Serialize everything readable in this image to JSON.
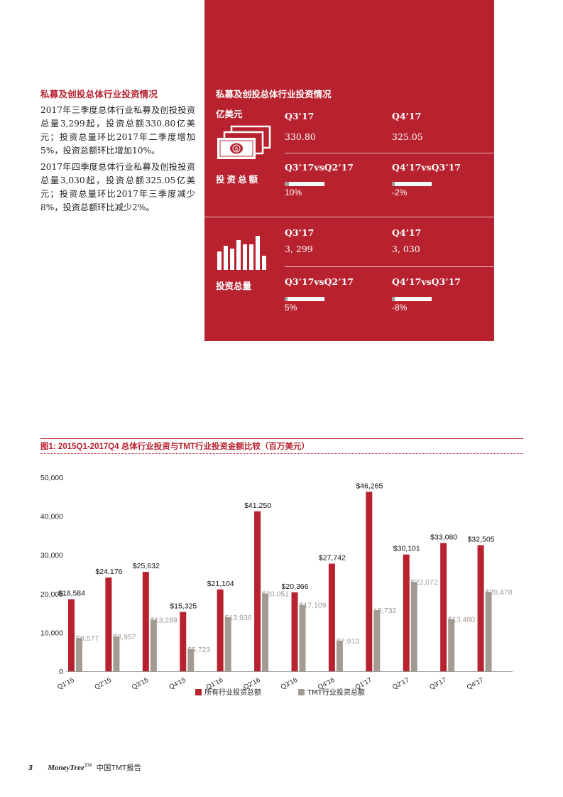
{
  "left": {
    "title": "私募及创投总体行业投资情况",
    "para1": "2017年三季度总体行业私募及创投投资总量3,299起，投资总额330.80亿美元；投资总量环比2017年二季度增加5%，投资总额环比增加10%。",
    "para2": "2017年四季度总体行业私募及创投投资总量3,030起，投资总额325.05亿美元；投资总量环比2017年三季度减少8%，投资总额环比减少2%。"
  },
  "panel": {
    "title": "私募及创投总体行业投资情况",
    "unit": "亿美元",
    "amount": {
      "label": "投资总额",
      "q3_header": "Q3’17",
      "q4_header": "Q4’17",
      "q3_value": "330.80",
      "q4_value": "325.05",
      "cmp1_header": "Q3’17vsQ2’17",
      "cmp2_header": "Q4’17vsQ3’17",
      "cmp1_value": "10%",
      "cmp2_value": "-2%",
      "cmp1_fraction": 0.1,
      "cmp2_fraction": 0.02
    },
    "volume": {
      "label": "投资总量",
      "q3_header": "Q3’17",
      "q4_header": "Q4’17",
      "q3_value": "3, 299",
      "q4_value": "3, 030",
      "cmp1_header": "Q3’17vsQ2’17",
      "cmp2_header": "Q4’17vsQ3’17",
      "cmp1_value": "5%",
      "cmp2_value": "-8%",
      "cmp1_fraction": 0.05,
      "cmp2_fraction": 0.08
    },
    "icons": {
      "amount": "money-stack-icon",
      "volume": "bar-chart-icon"
    },
    "colors": {
      "panel": "#b8222f",
      "bar_fill": "#ffffff",
      "bar_marker": "#a39a92"
    }
  },
  "chart_data": {
    "type": "bar",
    "title": "图1: 2015Q1-2017Q4 总体行业投资与TMT行业投资金额比较（百万美元）",
    "categories": [
      "Q1'15",
      "Q2'15",
      "Q3'15",
      "Q4'15",
      "Q1'16",
      "Q2'16",
      "Q3'16",
      "Q4'16",
      "Q1'17",
      "Q2'17",
      "Q3'17",
      "Q4'17"
    ],
    "series": [
      {
        "name": "所有行业投资总额",
        "color": "#b8222f",
        "values": [
          18584,
          24176,
          25632,
          15325,
          21104,
          41250,
          20366,
          27742,
          46265,
          30101,
          33080,
          32505
        ],
        "labels": [
          "$18,584",
          "$24,176",
          "$25,632",
          "$15,325",
          "$21,104",
          "$41,250",
          "$20,366",
          "$27,742",
          "$46,265",
          "$30,101",
          "$33,080",
          "$32,505"
        ]
      },
      {
        "name": "TMT行业投资总额",
        "color": "#a39a92",
        "values": [
          8577,
          8957,
          13289,
          5723,
          13936,
          20051,
          17109,
          7913,
          15732,
          23072,
          13480,
          20478
        ],
        "labels": [
          "$8,577",
          "$8,957",
          "$13,289",
          "$5,723",
          "$13,936",
          "$20,051",
          "$17,109",
          "$7,913",
          "15,732",
          "$23,072",
          "$13,480",
          "$20,478"
        ]
      }
    ],
    "ylim": [
      0,
      50000
    ],
    "yticks": [
      0,
      10000,
      20000,
      30000,
      40000,
      50000
    ],
    "ytick_labels": [
      "0",
      "10,000",
      "20,000",
      "30,000",
      "40,000",
      "50,000"
    ],
    "grid": false,
    "legend": "bottom-center"
  },
  "footer": {
    "page_number": "3",
    "brand": "MoneyTree",
    "tm": "TM",
    "report": "中国TMT报告"
  }
}
